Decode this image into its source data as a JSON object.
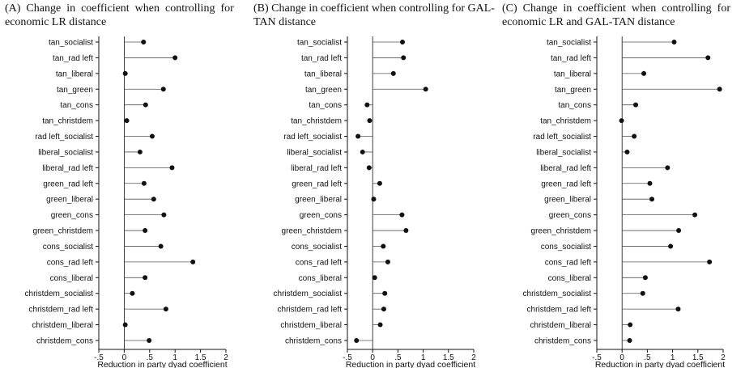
{
  "chart_data": [
    {
      "type": "dot",
      "title": "(A) Change in coefficient when controlling for economic LR distance",
      "title_lines": [
        "(A)  Change  in  coefficient  when  controlling  for",
        "economic LR distance"
      ],
      "xlabel": "Reduction in party dyad coefficient",
      "xlim": [
        -0.5,
        2
      ],
      "xticks": [
        -0.5,
        0,
        0.5,
        1,
        1.5,
        2
      ],
      "xtick_labels": [
        "-.5",
        "0",
        ".5",
        "1",
        "1.5",
        "2"
      ],
      "categories": [
        "tan_socialist",
        "tan_rad left",
        "tan_liberal",
        "tan_green",
        "tan_cons",
        "tan_christdem",
        "rad left_socialist",
        "liberal_socialist",
        "liberal_rad left",
        "green_rad left",
        "green_liberal",
        "green_cons",
        "green_christdem",
        "cons_socialist",
        "cons_rad left",
        "cons_liberal",
        "christdem_socialist",
        "christdem_rad left",
        "christdem_liberal",
        "christdem_cons"
      ],
      "values": [
        0.38,
        1.0,
        0.02,
        0.77,
        0.42,
        0.05,
        0.55,
        0.31,
        0.94,
        0.39,
        0.58,
        0.78,
        0.41,
        0.72,
        1.35,
        0.41,
        0.16,
        0.82,
        0.02,
        0.49
      ]
    },
    {
      "type": "dot",
      "title": "(B) Change in coefficient when controlling for GAL-TAN distance",
      "title_lines": [
        "(B) Change in coefficient when controlling for GAL-",
        "TAN distance"
      ],
      "xlabel": "Reduction in party dyad coefficient",
      "xlim": [
        -0.5,
        2
      ],
      "xticks": [
        -0.5,
        0,
        0.5,
        1,
        1.5,
        2
      ],
      "xtick_labels": [
        "-.5",
        "0",
        ".5",
        "1",
        "1.5",
        "2"
      ],
      "categories": [
        "tan_socialist",
        "tan_rad left",
        "tan_liberal",
        "tan_green",
        "tan_cons",
        "tan_christdem",
        "rad left_socialist",
        "liberal_socialist",
        "liberal_rad left",
        "green_rad left",
        "green_liberal",
        "green_cons",
        "green_christdem",
        "cons_socialist",
        "cons_rad left",
        "cons_liberal",
        "christdem_socialist",
        "christdem_rad left",
        "christdem_liberal",
        "christdem_cons"
      ],
      "values": [
        0.59,
        0.61,
        0.41,
        1.05,
        -0.11,
        -0.06,
        -0.29,
        -0.2,
        -0.07,
        0.14,
        0.02,
        0.58,
        0.66,
        0.21,
        0.3,
        0.04,
        0.24,
        0.22,
        0.15,
        -0.32
      ]
    },
    {
      "type": "dot",
      "title": "(C) Change in coefficient when controlling for economic LR and GAL-TAN distance",
      "title_lines": [
        "(C)  Change  in  coefficient  when  controlling  for",
        "economic LR and GAL-TAN distance"
      ],
      "xlabel": "Reduction in party dyad coefficient",
      "xlim": [
        -0.5,
        2
      ],
      "xticks": [
        -0.5,
        0,
        0.5,
        1,
        1.5,
        2
      ],
      "xtick_labels": [
        "-.5",
        "0",
        ".5",
        "1",
        "1.5",
        "2"
      ],
      "categories": [
        "tan_socialist",
        "tan_rad left",
        "tan_liberal",
        "tan_green",
        "tan_cons",
        "tan_christdem",
        "rad left_socialist",
        "liberal_socialist",
        "liberal_rad left",
        "green_rad left",
        "green_liberal",
        "green_cons",
        "green_christdem",
        "cons_socialist",
        "cons_rad left",
        "cons_liberal",
        "christdem_socialist",
        "christdem_rad left",
        "christdem_liberal",
        "christdem_cons"
      ],
      "values": [
        1.03,
        1.7,
        0.43,
        1.93,
        0.27,
        -0.01,
        0.24,
        0.1,
        0.9,
        0.55,
        0.59,
        1.44,
        1.12,
        0.96,
        1.73,
        0.46,
        0.41,
        1.11,
        0.16,
        0.15
      ]
    }
  ]
}
